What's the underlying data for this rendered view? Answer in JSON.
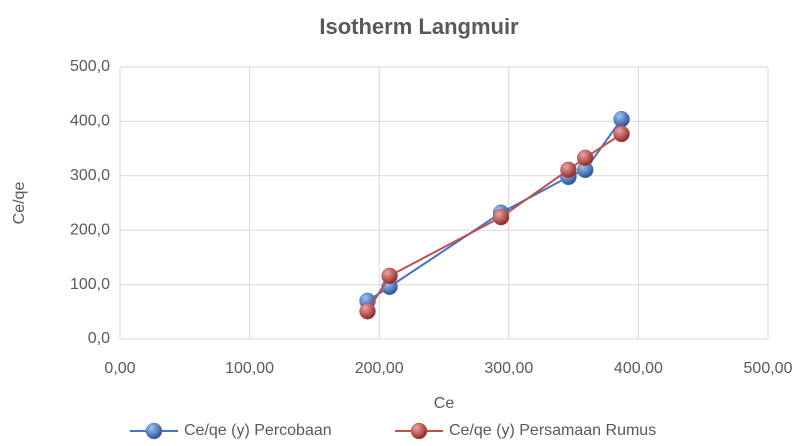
{
  "chart_data": {
    "type": "line",
    "title": "Isotherm Langmuir",
    "x_label": "Ce",
    "y_label": "Ce/qe",
    "series": [
      {
        "name": "Ce/qe (y) Percobaan",
        "color": "#4472c4",
        "x": [
          191,
          208,
          294,
          346,
          359,
          387
        ],
        "values": [
          70,
          96,
          232,
          298,
          311,
          404
        ]
      },
      {
        "name": "Ce/qe (y) Persamaan Rumus",
        "color": "#c0504d",
        "x": [
          191,
          208,
          294,
          346,
          359,
          387
        ],
        "values": [
          51,
          116,
          224,
          311,
          333,
          377
        ]
      }
    ],
    "xlim": [
      0,
      500
    ],
    "xticks": [
      {
        "value": 0,
        "label": "0,00"
      },
      {
        "value": 100,
        "label": "100,00"
      },
      {
        "value": 200,
        "label": "200,00"
      },
      {
        "value": 300,
        "label": "300,00"
      },
      {
        "value": 400,
        "label": "400,00"
      },
      {
        "value": 500,
        "label": "500,00"
      }
    ],
    "ylim": [
      0,
      500
    ],
    "yticks": [
      {
        "value": 0,
        "label": "0,0"
      },
      {
        "value": 100,
        "label": "100,0"
      },
      {
        "value": 200,
        "label": "200,0"
      },
      {
        "value": 300,
        "label": "300,0"
      },
      {
        "value": 400,
        "label": "400,0"
      },
      {
        "value": 500,
        "label": "500,0"
      }
    ],
    "grid": true,
    "legend": "bottom"
  }
}
